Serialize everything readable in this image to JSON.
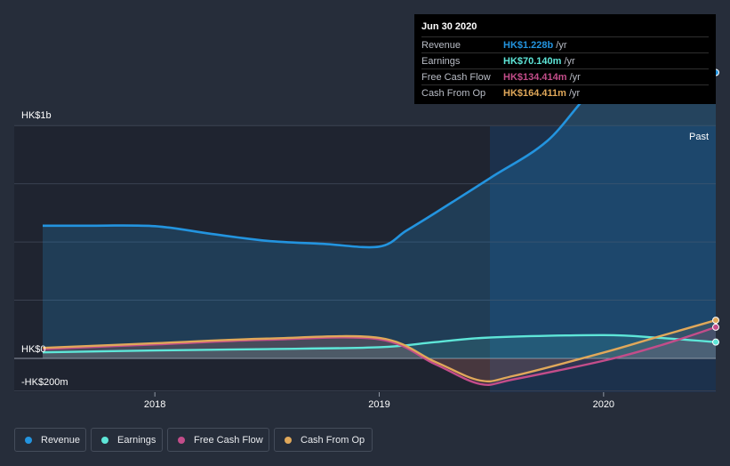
{
  "chart_data": {
    "type": "line",
    "title": "",
    "x_ticks": [
      "2018",
      "2019",
      "2020"
    ],
    "y_ticks": [
      "HK$1b",
      "HK$0",
      "-HK$200m"
    ],
    "ylim": [
      -200,
      1400
    ],
    "region_label": "Past",
    "series": [
      {
        "name": "Revenue",
        "color": "#2394df",
        "area": true,
        "points": [
          [
            2017.5,
            570
          ],
          [
            2017.7,
            570
          ],
          [
            2018.0,
            568
          ],
          [
            2018.25,
            535
          ],
          [
            2018.5,
            505
          ],
          [
            2018.75,
            492
          ],
          [
            2019.0,
            480
          ],
          [
            2019.12,
            548
          ],
          [
            2019.25,
            625
          ],
          [
            2019.5,
            778
          ],
          [
            2019.75,
            935
          ],
          [
            2020.0,
            1190
          ],
          [
            2020.25,
            1205
          ],
          [
            2020.5,
            1228
          ]
        ]
      },
      {
        "name": "Earnings",
        "color": "#5ee6d8",
        "area": false,
        "points": [
          [
            2017.5,
            26
          ],
          [
            2018.0,
            34
          ],
          [
            2018.5,
            40
          ],
          [
            2019.0,
            48
          ],
          [
            2019.25,
            70
          ],
          [
            2019.5,
            90
          ],
          [
            2020.0,
            100
          ],
          [
            2020.25,
            88
          ],
          [
            2020.5,
            70
          ]
        ]
      },
      {
        "name": "Free Cash Flow",
        "color": "#c34d8a",
        "area": false,
        "points": [
          [
            2017.5,
            40
          ],
          [
            2018.0,
            60
          ],
          [
            2018.5,
            80
          ],
          [
            2019.0,
            82
          ],
          [
            2019.25,
            -25
          ],
          [
            2019.45,
            -110
          ],
          [
            2019.6,
            -90
          ],
          [
            2020.0,
            -10
          ],
          [
            2020.25,
            55
          ],
          [
            2020.5,
            134
          ]
        ]
      },
      {
        "name": "Cash From Op",
        "color": "#e0a85a",
        "area": false,
        "points": [
          [
            2017.5,
            45
          ],
          [
            2018.0,
            65
          ],
          [
            2018.5,
            85
          ],
          [
            2019.0,
            88
          ],
          [
            2019.25,
            -15
          ],
          [
            2019.45,
            -95
          ],
          [
            2019.6,
            -75
          ],
          [
            2020.0,
            25
          ],
          [
            2020.25,
            95
          ],
          [
            2020.5,
            164
          ]
        ]
      }
    ]
  },
  "tooltip": {
    "date": "Jun 30 2020",
    "rows": [
      {
        "name": "Revenue",
        "value": "HK$1.228b",
        "unit": "/yr",
        "color": "#2394df"
      },
      {
        "name": "Earnings",
        "value": "HK$70.140m",
        "unit": "/yr",
        "color": "#5ee6d8"
      },
      {
        "name": "Free Cash Flow",
        "value": "HK$134.414m",
        "unit": "/yr",
        "color": "#c34d8a"
      },
      {
        "name": "Cash From Op",
        "value": "HK$164.411m",
        "unit": "/yr",
        "color": "#e0a85a"
      }
    ]
  },
  "legend": [
    {
      "label": "Revenue",
      "color": "#2394df"
    },
    {
      "label": "Earnings",
      "color": "#5ee6d8"
    },
    {
      "label": "Free Cash Flow",
      "color": "#c34d8a"
    },
    {
      "label": "Cash From Op",
      "color": "#e0a85a"
    }
  ]
}
